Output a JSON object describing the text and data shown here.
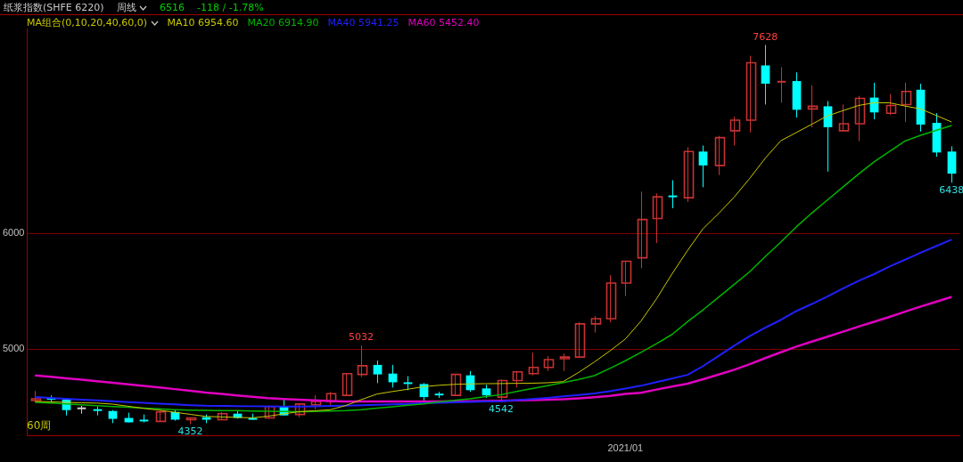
{
  "chart_data": {
    "type": "candlestick",
    "title": "纸浆指数(SHFE 6220)",
    "annotations": [
      "周线",
      "6516",
      "-118 / -1.78%",
      "MA组合(0,10,20,40,60,0)",
      "60周",
      {
        "text": "7628",
        "y": 7628
      },
      {
        "text": "5032",
        "y": 5032
      },
      {
        "text": "4352",
        "y": 4352
      },
      {
        "text": "4542",
        "y": 4542
      },
      {
        "text": "6438",
        "y": 6438
      }
    ],
    "categories": [
      null,
      null,
      null,
      null,
      null,
      null,
      null,
      null,
      null,
      null,
      null,
      null,
      null,
      null,
      null,
      null,
      null,
      null,
      null,
      null,
      null,
      null,
      null,
      null,
      null,
      null,
      null,
      null,
      null,
      null,
      null,
      null,
      null,
      null,
      null,
      null,
      null,
      null,
      "2021/01",
      null,
      null,
      null,
      null,
      null,
      null,
      null,
      null,
      null,
      null,
      null,
      null,
      null,
      null,
      null,
      null,
      null,
      null,
      null,
      null,
      null
    ],
    "ohlc": [
      [
        4556,
        4639,
        4556,
        4571
      ],
      [
        4579,
        4601,
        4534,
        4564
      ],
      [
        4564,
        4570,
        4428,
        4474
      ],
      [
        4489,
        4511,
        4443,
        4489
      ],
      [
        4481,
        4504,
        4428,
        4474
      ],
      [
        4466,
        4474,
        4361,
        4398
      ],
      [
        4406,
        4451,
        4368,
        4368
      ],
      [
        4391,
        4436,
        4368,
        4376
      ],
      [
        4376,
        4474,
        4376,
        4458
      ],
      [
        4458,
        4474,
        4383,
        4391
      ],
      [
        4391,
        4406,
        4352,
        4406
      ],
      [
        4413,
        4436,
        4361,
        4391
      ],
      [
        4391,
        4458,
        4391,
        4443
      ],
      [
        4443,
        4466,
        4400,
        4406
      ],
      [
        4406,
        4443,
        4391,
        4398
      ],
      [
        4406,
        4511,
        4398,
        4504
      ],
      [
        4504,
        4579,
        4428,
        4428
      ],
      [
        4436,
        4526,
        4413,
        4526
      ],
      [
        4519,
        4601,
        4481,
        4549
      ],
      [
        4549,
        4631,
        4519,
        4616
      ],
      [
        4601,
        4789,
        4594,
        4789
      ],
      [
        4782,
        5032,
        4759,
        4857
      ],
      [
        4864,
        4902,
        4707,
        4782
      ],
      [
        4789,
        4864,
        4669,
        4714
      ],
      [
        4714,
        4767,
        4646,
        4699
      ],
      [
        4699,
        4707,
        4549,
        4586
      ],
      [
        4616,
        4631,
        4579,
        4601
      ],
      [
        4601,
        4782,
        4594,
        4782
      ],
      [
        4774,
        4812,
        4631,
        4646
      ],
      [
        4661,
        4692,
        4579,
        4601
      ],
      [
        4586,
        4737,
        4542,
        4729
      ],
      [
        4729,
        4812,
        4669,
        4804
      ],
      [
        4789,
        4970,
        4774,
        4842
      ],
      [
        4842,
        4940,
        4812,
        4910
      ],
      [
        4917,
        4962,
        4812,
        4932
      ],
      [
        4932,
        5233,
        4932,
        5218
      ],
      [
        5218,
        5286,
        5143,
        5263
      ],
      [
        5263,
        5639,
        5233,
        5571
      ],
      [
        5571,
        5759,
        5459,
        5759
      ],
      [
        5789,
        6361,
        5699,
        6120
      ],
      [
        6128,
        6346,
        5917,
        6316
      ],
      [
        6326,
        6459,
        6218,
        6320
      ],
      [
        6308,
        6744,
        6271,
        6707
      ],
      [
        6707,
        6759,
        6399,
        6587
      ],
      [
        6587,
        6842,
        6504,
        6827
      ],
      [
        6887,
        7008,
        6760,
        6978
      ],
      [
        6978,
        7534,
        6872,
        7474
      ],
      [
        7451,
        7628,
        7113,
        7293
      ],
      [
        7305,
        7436,
        7128,
        7310
      ],
      [
        7316,
        7391,
        7000,
        7068
      ],
      [
        7075,
        7278,
        6917,
        7098
      ],
      [
        7098,
        7143,
        6534,
        6917
      ],
      [
        6887,
        7113,
        6887,
        6947
      ],
      [
        6947,
        7188,
        6797,
        7166
      ],
      [
        7173,
        7301,
        6985,
        7045
      ],
      [
        7038,
        7203,
        7023,
        7105
      ],
      [
        7113,
        7301,
        6962,
        7226
      ],
      [
        7241,
        7293,
        6880,
        6940
      ],
      [
        6955,
        7038,
        6662,
        6699
      ],
      [
        6707,
        6752,
        6438,
        6516
      ]
    ],
    "colors": [
      "#c83232",
      "#00ffff",
      "#00ffff",
      "#d0d0d0",
      "#00ffff",
      "#00ffff",
      "#00ffff",
      "#00ffff",
      "#c83232",
      "#00ffff",
      "#c83232",
      "#00ffff",
      "#c83232",
      "#00ffff",
      "#00ffff",
      "#c83232",
      "#00ffff",
      "#c83232",
      "#c83232",
      "#c83232",
      "#c83232",
      "#c83232",
      "#00ffff",
      "#00ffff",
      "#00ffff",
      "#00ffff",
      "#00ffff",
      "#c83232",
      "#00ffff",
      "#00ffff",
      "#c83232",
      "#c83232",
      "#c83232",
      "#c83232",
      "#c83232",
      "#c83232",
      "#c83232",
      "#c83232",
      "#c83232",
      "#c83232",
      "#c83232",
      "#00ffff",
      "#c83232",
      "#00ffff",
      "#c83232",
      "#c83232",
      "#c83232",
      "#00ffff",
      "#c83232",
      "#00ffff",
      "#c83232",
      "#00ffff",
      "#c83232",
      "#c83232",
      "#00ffff",
      "#c83232",
      "#c83232",
      "#00ffff",
      "#00ffff",
      "#00ffff"
    ],
    "series": [
      {
        "type": "line",
        "name": "MA10 6954.60",
        "color": "#c8c800",
        "values": [
          4549,
          4545,
          4541,
          4537,
          4534,
          4525,
          4507,
          4489,
          4473,
          4455,
          4437,
          4419,
          4415,
          4411,
          4407,
          4421,
          4441,
          4460,
          4468,
          4477,
          4513,
          4564,
          4612,
          4634,
          4654,
          4676,
          4688,
          4696,
          4700,
          4702,
          4703,
          4705,
          4706,
          4710,
          4720,
          4800,
          4889,
          4985,
          5088,
          5242,
          5434,
          5650,
          5852,
          6041,
          6172,
          6313,
          6475,
          6649,
          6800,
          6871,
          6943,
          7015,
          7060,
          7105,
          7128,
          7128,
          7100,
          7075,
          7019,
          6962
        ]
      },
      {
        "type": "line",
        "name": "MA20 6914.90",
        "color": "#00b400",
        "values": [
          4541,
          4534,
          4527,
          4520,
          4512,
          4505,
          4498,
          4491,
          4484,
          4478,
          4474,
          4472,
          4470,
          4469,
          4466,
          4464,
          4462,
          4460,
          4462,
          4465,
          4469,
          4478,
          4491,
          4502,
          4515,
          4527,
          4545,
          4558,
          4572,
          4590,
          4607,
          4634,
          4660,
          4685,
          4711,
          4738,
          4771,
          4834,
          4900,
          4972,
          5047,
          5127,
          5237,
          5340,
          5449,
          5559,
          5669,
          5800,
          5925,
          6056,
          6176,
          6288,
          6400,
          6512,
          6617,
          6708,
          6799,
          6847,
          6890,
          6932
        ]
      },
      {
        "type": "line",
        "name": "MA40 5941.25",
        "color": "#2020ff",
        "values": [
          4586,
          4579,
          4572,
          4564,
          4557,
          4550,
          4543,
          4536,
          4530,
          4523,
          4516,
          4511,
          4510,
          4508,
          4507,
          4506,
          4505,
          4504,
          4506,
          4509,
          4511,
          4515,
          4519,
          4523,
          4527,
          4532,
          4536,
          4540,
          4545,
          4548,
          4550,
          4560,
          4570,
          4580,
          4592,
          4604,
          4617,
          4637,
          4660,
          4684,
          4715,
          4747,
          4778,
          4854,
          4942,
          5030,
          5113,
          5186,
          5252,
          5329,
          5390,
          5455,
          5524,
          5589,
          5648,
          5714,
          5773,
          5833,
          5890,
          5947
        ]
      },
      {
        "type": "line",
        "name": "MA60 5452.40",
        "color": "#e000c0",
        "values": [
          4774,
          4762,
          4749,
          4737,
          4724,
          4710,
          4696,
          4683,
          4669,
          4655,
          4641,
          4625,
          4613,
          4601,
          4589,
          4577,
          4569,
          4563,
          4558,
          4553,
          4549,
          4549,
          4549,
          4549,
          4549,
          4549,
          4549,
          4550,
          4551,
          4553,
          4555,
          4557,
          4560,
          4563,
          4567,
          4575,
          4585,
          4596,
          4614,
          4624,
          4651,
          4677,
          4702,
          4740,
          4781,
          4822,
          4870,
          4923,
          4973,
          5022,
          5065,
          5108,
          5151,
          5195,
          5236,
          5279,
          5324,
          5368,
          5410,
          5452
        ]
      }
    ],
    "ylim": [
      4250,
      7770
    ],
    "yticks": [
      5000,
      6000
    ],
    "grid": "y",
    "legend": "top left"
  }
}
